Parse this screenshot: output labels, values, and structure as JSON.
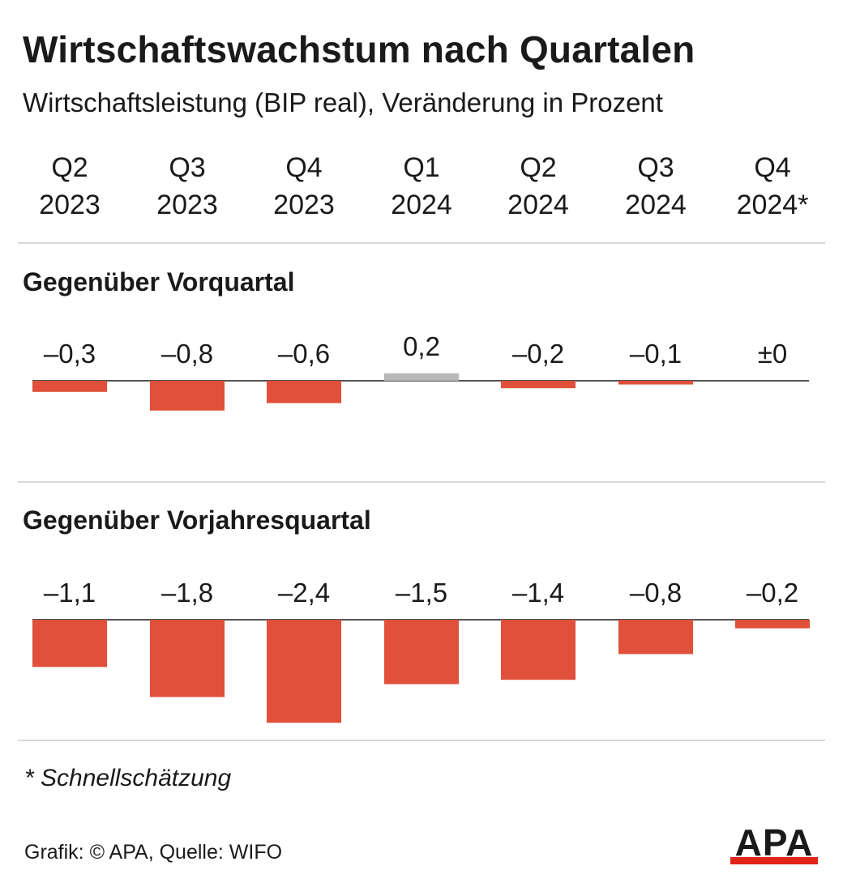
{
  "title": "Wirtschaftswachstum nach Quartalen",
  "subtitle": "Wirtschaftsleistung (BIP real), Veränderung in Prozent",
  "categories": [
    {
      "q": "Q2",
      "y": "2023"
    },
    {
      "q": "Q3",
      "y": "2023"
    },
    {
      "q": "Q4",
      "y": "2023"
    },
    {
      "q": "Q1",
      "y": "2024"
    },
    {
      "q": "Q2",
      "y": "2024"
    },
    {
      "q": "Q3",
      "y": "2024"
    },
    {
      "q": "Q4",
      "y": "2024*"
    }
  ],
  "chart_data": [
    {
      "type": "bar",
      "title": "Gegenüber Vorquartal",
      "categories": [
        "Q2 2023",
        "Q3 2023",
        "Q4 2023",
        "Q1 2024",
        "Q2 2024",
        "Q3 2024",
        "Q4 2024*"
      ],
      "values": [
        -0.3,
        -0.8,
        -0.6,
        0.2,
        -0.2,
        -0.1,
        0
      ],
      "labels": [
        "–0,3",
        "–0,8",
        "–0,6",
        "0,2",
        "–0,2",
        "–0,1",
        "±0"
      ],
      "colors": {
        "negative": "#e0503a",
        "positive": "#b8b8b8"
      }
    },
    {
      "type": "bar",
      "title": "Gegenüber Vorjahresquartal",
      "categories": [
        "Q2 2023",
        "Q3 2023",
        "Q4 2023",
        "Q1 2024",
        "Q2 2024",
        "Q3 2024",
        "Q4 2024*"
      ],
      "values": [
        -1.1,
        -1.8,
        -2.4,
        -1.5,
        -1.4,
        -0.8,
        -0.2
      ],
      "labels": [
        "–1,1",
        "–1,8",
        "–2,4",
        "–1,5",
        "–1,4",
        "–0,8",
        "–0,2"
      ],
      "colors": {
        "negative": "#e0503a",
        "positive": "#b8b8b8"
      }
    }
  ],
  "footnote": "* Schnellschätzung",
  "source": "Grafik: © APA, Quelle: WIFO",
  "logo": {
    "text": "APA",
    "color": "#1a1a1a",
    "accent": "#e2231a"
  }
}
